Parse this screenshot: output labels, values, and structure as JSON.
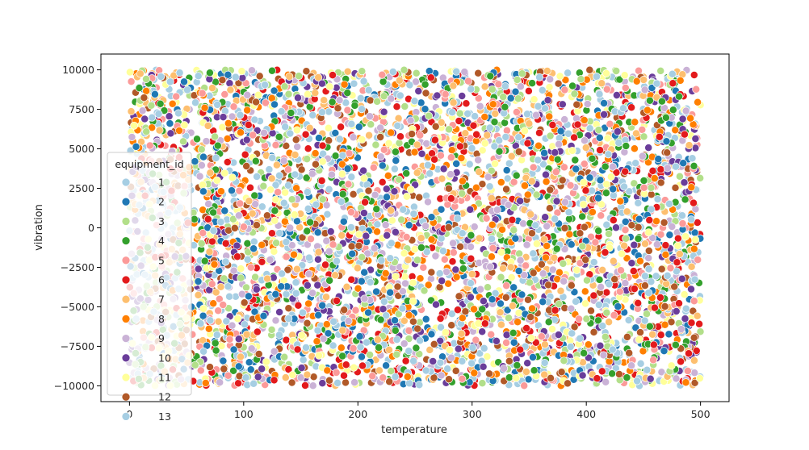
{
  "chart_data": {
    "type": "scatter",
    "title": "",
    "xlabel": "temperature",
    "ylabel": "vibration",
    "xlim": [
      -25,
      525
    ],
    "ylim": [
      -11000,
      11000
    ],
    "x_ticks": [
      0,
      100,
      200,
      300,
      400,
      500
    ],
    "y_ticks": [
      -10000,
      -7500,
      -5000,
      -2500,
      0,
      2500,
      5000,
      7500,
      10000
    ],
    "x_tick_labels": [
      "0",
      "100",
      "200",
      "300",
      "400",
      "500"
    ],
    "y_tick_labels": [
      "−10000",
      "−7500",
      "−5000",
      "−2500",
      "0",
      "2500",
      "5000",
      "7500",
      "10000"
    ],
    "grid": false,
    "legend": {
      "title": "equipment_id",
      "placement": "center-left",
      "entries": [
        "1",
        "2",
        "3",
        "4",
        "5",
        "6",
        "7",
        "8",
        "9",
        "10",
        "11",
        "12",
        "13"
      ]
    },
    "colors": [
      "#a6cee3",
      "#1f78b4",
      "#b2df8a",
      "#33a02c",
      "#fb9a99",
      "#e31a1c",
      "#fdbf6f",
      "#ff7f00",
      "#cab2d6",
      "#6a3d9a",
      "#ffff99",
      "#b15928",
      "#a6cee3"
    ],
    "distribution": {
      "x_range": [
        0,
        500
      ],
      "y_range": [
        -10000,
        10000
      ],
      "points_per_series": 450,
      "pattern": "uniform"
    }
  }
}
